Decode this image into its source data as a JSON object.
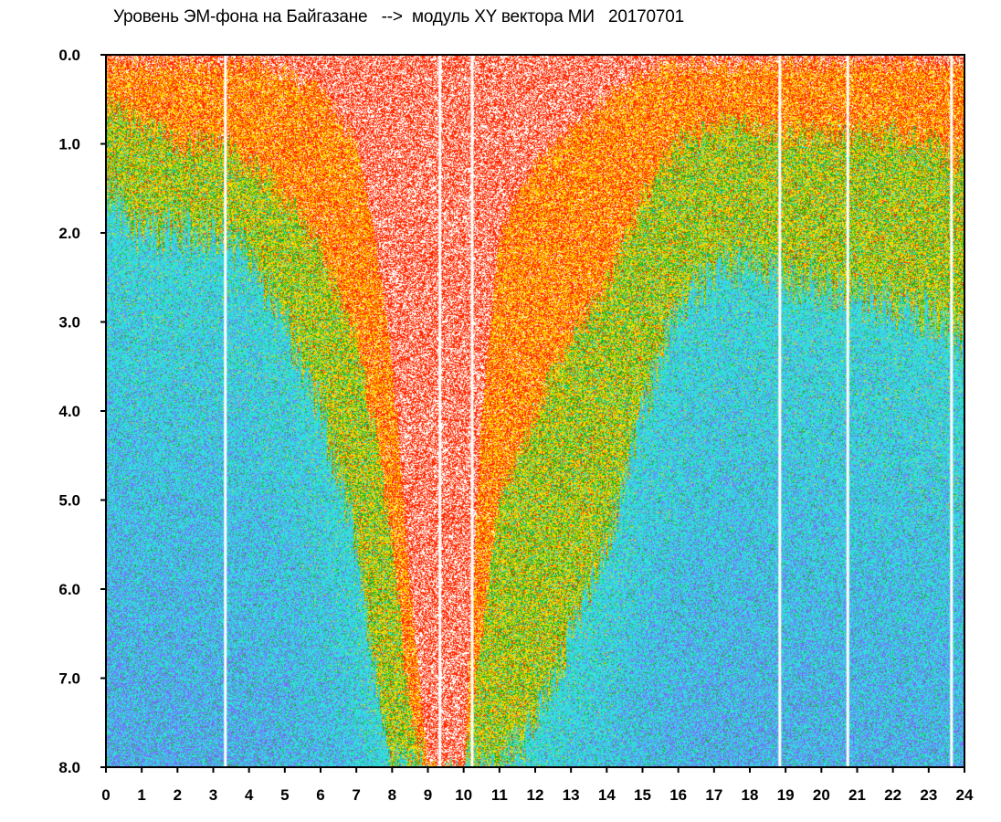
{
  "chart_data": {
    "type": "heatmap",
    "title": "Уровень ЭМ-фона на Байгазане   -->  модуль XY вектора МИ   20170701",
    "xlabel": "",
    "ylabel": "",
    "xlim": [
      0,
      24
    ],
    "ylim": [
      0,
      8
    ],
    "y_inverted": true,
    "x_ticks": [
      0,
      1,
      2,
      3,
      4,
      5,
      6,
      7,
      8,
      9,
      10,
      11,
      12,
      13,
      14,
      15,
      16,
      17,
      18,
      19,
      20,
      21,
      22,
      23,
      24
    ],
    "y_ticks": [
      0.0,
      1.0,
      2.0,
      3.0,
      4.0,
      5.0,
      6.0,
      7.0,
      8.0
    ],
    "y_tick_labels": [
      "0.0",
      "1.0",
      "2.0",
      "3.0",
      "4.0",
      "5.0",
      "6.0",
      "7.0",
      "8.0"
    ],
    "colors": [
      "#ff2a00",
      "#ffd800",
      "#18b418",
      "#33dddd",
      "#7a6cff",
      "#ffffff"
    ],
    "gap_hours": [
      3.3,
      9.3,
      10.2,
      18.8,
      20.7,
      23.6
    ],
    "level_profile": {
      "hours": [
        0,
        1,
        2,
        3,
        4,
        5,
        6,
        7,
        7.5,
        8,
        8.5,
        9,
        9.5,
        10,
        10.5,
        11,
        12,
        13,
        14,
        15,
        16,
        17,
        18,
        19,
        20,
        21,
        22,
        23,
        24
      ],
      "red_edge": [
        0.1,
        0.1,
        0.1,
        0.1,
        0.1,
        0.2,
        0.4,
        1.0,
        2.0,
        3.5,
        6.0,
        8.0,
        8.0,
        8.0,
        4.0,
        2.0,
        1.2,
        0.8,
        0.5,
        0.2,
        0.1,
        0.1,
        0.1,
        0.1,
        0.1,
        0.1,
        0.1,
        0.1,
        0.1
      ],
      "yellow_edge": [
        0.5,
        0.8,
        1.0,
        1.0,
        1.2,
        1.6,
        2.2,
        3.2,
        4.2,
        5.5,
        7.5,
        8.0,
        8.0,
        8.0,
        6.5,
        5.0,
        4.0,
        3.2,
        2.6,
        1.6,
        1.0,
        0.8,
        0.8,
        0.9,
        0.9,
        0.9,
        0.9,
        1.0,
        1.2
      ],
      "green_edge": [
        1.5,
        2.0,
        2.0,
        2.0,
        2.3,
        3.0,
        4.0,
        5.5,
        7.0,
        8.0,
        8.0,
        8.0,
        8.0,
        8.0,
        8.0,
        8.0,
        7.5,
        6.5,
        5.5,
        4.0,
        2.8,
        2.4,
        2.3,
        2.5,
        2.6,
        2.7,
        2.8,
        2.9,
        3.2
      ]
    }
  }
}
